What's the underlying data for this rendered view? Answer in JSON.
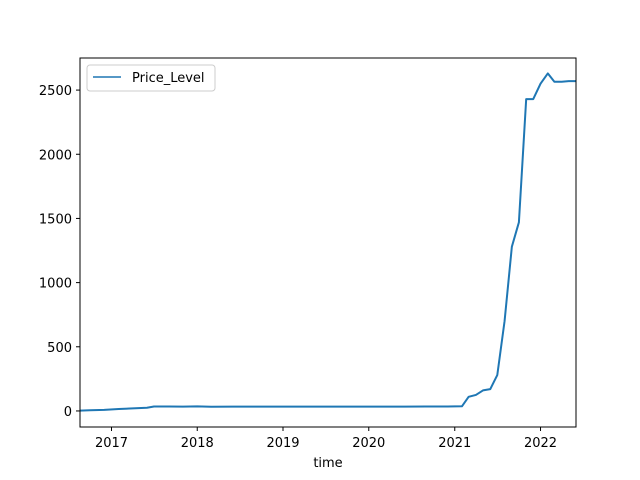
{
  "chart_data": {
    "type": "line",
    "title": "",
    "xlabel": "time",
    "ylabel": "",
    "xlim": [
      "2016-08-20",
      "2022-06-01"
    ],
    "ylim": [
      -125,
      2750
    ],
    "x_ticks": [
      {
        "date": "2017-01-01",
        "label": "2017"
      },
      {
        "date": "2018-01-01",
        "label": "2018"
      },
      {
        "date": "2019-01-01",
        "label": "2019"
      },
      {
        "date": "2020-01-01",
        "label": "2020"
      },
      {
        "date": "2021-01-01",
        "label": "2021"
      },
      {
        "date": "2022-01-01",
        "label": "2022"
      }
    ],
    "y_ticks": [
      0,
      500,
      1000,
      1500,
      2000,
      2500
    ],
    "grid": false,
    "legend": {
      "position": "upper-left",
      "entries": [
        "Price_Level"
      ]
    },
    "series": [
      {
        "name": "Price_Level",
        "color": "#1f77b4",
        "points": [
          [
            "2016-08-20",
            3
          ],
          [
            "2016-10-01",
            5
          ],
          [
            "2016-12-01",
            8
          ],
          [
            "2017-02-01",
            15
          ],
          [
            "2017-04-01",
            20
          ],
          [
            "2017-06-01",
            25
          ],
          [
            "2017-07-01",
            35
          ],
          [
            "2017-09-01",
            35
          ],
          [
            "2017-11-01",
            34
          ],
          [
            "2018-01-01",
            36
          ],
          [
            "2018-03-01",
            33
          ],
          [
            "2018-06-01",
            34
          ],
          [
            "2018-09-01",
            34
          ],
          [
            "2018-12-01",
            34
          ],
          [
            "2019-03-01",
            34
          ],
          [
            "2019-06-01",
            34
          ],
          [
            "2019-09-01",
            34
          ],
          [
            "2019-12-01",
            34
          ],
          [
            "2020-03-01",
            34
          ],
          [
            "2020-06-01",
            34
          ],
          [
            "2020-09-01",
            35
          ],
          [
            "2020-12-01",
            35
          ],
          [
            "2021-01-01",
            36
          ],
          [
            "2021-02-01",
            37
          ],
          [
            "2021-03-01",
            110
          ],
          [
            "2021-04-01",
            125
          ],
          [
            "2021-05-01",
            160
          ],
          [
            "2021-06-01",
            170
          ],
          [
            "2021-07-01",
            280
          ],
          [
            "2021-08-01",
            700
          ],
          [
            "2021-09-01",
            1280
          ],
          [
            "2021-10-01",
            1470
          ],
          [
            "2021-11-01",
            2430
          ],
          [
            "2021-12-01",
            2430
          ],
          [
            "2022-01-01",
            2550
          ],
          [
            "2022-02-01",
            2630
          ],
          [
            "2022-03-01",
            2565
          ],
          [
            "2022-04-01",
            2565
          ],
          [
            "2022-05-01",
            2570
          ],
          [
            "2022-06-01",
            2570
          ]
        ]
      }
    ]
  }
}
